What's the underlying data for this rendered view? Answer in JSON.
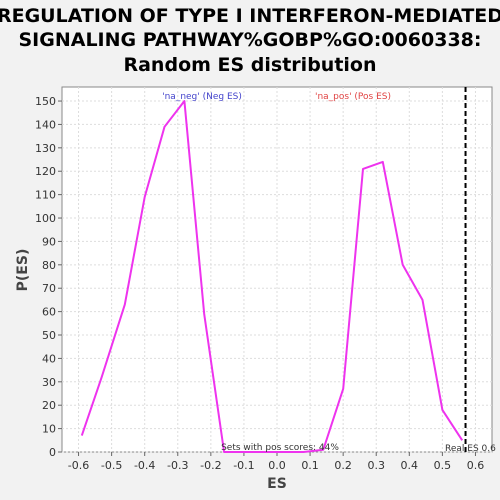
{
  "chart_data": {
    "type": "line",
    "title_lines": [
      "REGULATION OF TYPE I INTERFERON-MEDIATED",
      "SIGNALING PATHWAY%GOBP%GO:0060338:",
      "Random ES distribution"
    ],
    "xlabel": "ES",
    "ylabel": "P(ES)",
    "xlim": [
      -0.65,
      0.65
    ],
    "ylim": [
      0,
      156
    ],
    "x_ticks": [
      "-0.6",
      "-0.5",
      "-0.4",
      "-0.3",
      "-0.2",
      "-0.1",
      "0.0",
      "0.1",
      "0.2",
      "0.3",
      "0.4",
      "0.5",
      "0.6"
    ],
    "y_ticks": [
      "0",
      "10",
      "20",
      "30",
      "40",
      "50",
      "60",
      "70",
      "80",
      "90",
      "100",
      "110",
      "120",
      "130",
      "140",
      "150"
    ],
    "grid": true,
    "series": [
      {
        "color": "#ee33ee",
        "x": [
          -0.59,
          -0.53,
          -0.46,
          -0.4,
          -0.34,
          -0.28,
          -0.22,
          -0.16,
          -0.1,
          -0.04,
          0.02,
          0.08,
          0.14,
          0.2,
          0.26,
          0.32,
          0.38,
          0.44,
          0.5,
          0.56
        ],
        "y": [
          7,
          32,
          63,
          109,
          139,
          150,
          59,
          0,
          0,
          0,
          0,
          0,
          1,
          27,
          121,
          124,
          80,
          65,
          18,
          5
        ]
      }
    ],
    "real_es": 0.57,
    "annotations": {
      "neg_label": "'na_neg' (Neg ES)",
      "pos_label": "'na_pos' (Pos ES)",
      "neg_color": "#4444cc",
      "pos_color": "#e04444",
      "pos_scores_text": "Sets with pos scores: 44%",
      "real_es_text": "Real ES 0.6"
    }
  }
}
